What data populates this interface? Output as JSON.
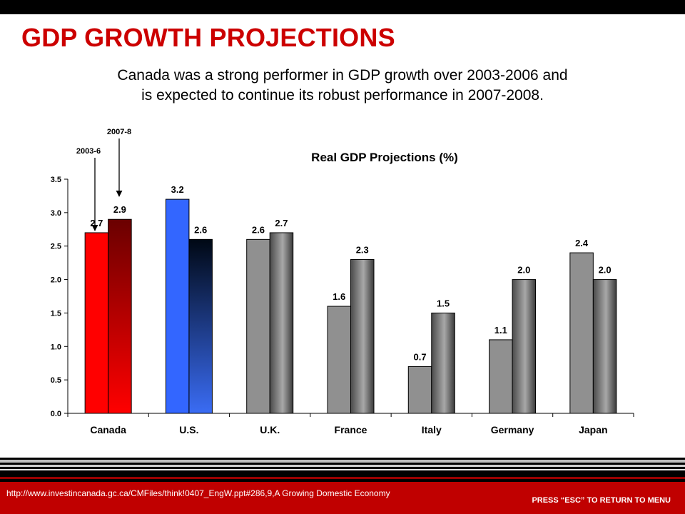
{
  "slide": {
    "title": "GDP GROWTH PROJECTIONS",
    "subtitle_line1": "Canada was a strong performer in GDP growth over 2003-2006 and",
    "subtitle_line2": "is expected to continue its robust performance in 2007-2008."
  },
  "footer": {
    "source_url": "http://www.investincanada.gc.ca/CMFiles/think!0407_EngW.ppt#286,9,A Growing Domestic Economy",
    "esc_hint": "PRESS “ESC” TO RETURN TO MENU"
  },
  "colors": {
    "title": "#cc0000",
    "canada": "#ff0000",
    "canada_projection": "#8b0000",
    "us": "#3366ff",
    "us_projection": "#0a1a4a",
    "other": "#909090",
    "footer": "#c00000"
  },
  "chart_data": {
    "type": "bar",
    "title": "Real GDP Projections (%)",
    "xlabel": "",
    "ylabel": "",
    "categories": [
      "Canada",
      "U.S.",
      "U.K.",
      "France",
      "Italy",
      "Germany",
      "Japan"
    ],
    "series": [
      {
        "name": "2003-6",
        "values": [
          2.7,
          3.2,
          2.6,
          1.6,
          0.7,
          1.1,
          2.4
        ]
      },
      {
        "name": "2007-8",
        "values": [
          2.9,
          2.6,
          2.7,
          2.3,
          1.5,
          2.0,
          2.0
        ]
      }
    ],
    "data_labels": [
      [
        "2.7",
        "3.2",
        "2.6",
        "1.6",
        "0.7",
        "1.1",
        "2.4"
      ],
      [
        "2.9",
        "2.6",
        "2.7",
        "2.3",
        "1.5",
        "2.0",
        "2.0"
      ]
    ],
    "ylim": [
      0,
      3.5
    ],
    "yticks": [
      "0.0",
      "0.5",
      "1.0",
      "1.5",
      "2.0",
      "2.5",
      "3.0",
      "3.5"
    ],
    "grid": false,
    "legend": "arrow annotations at top-left"
  }
}
